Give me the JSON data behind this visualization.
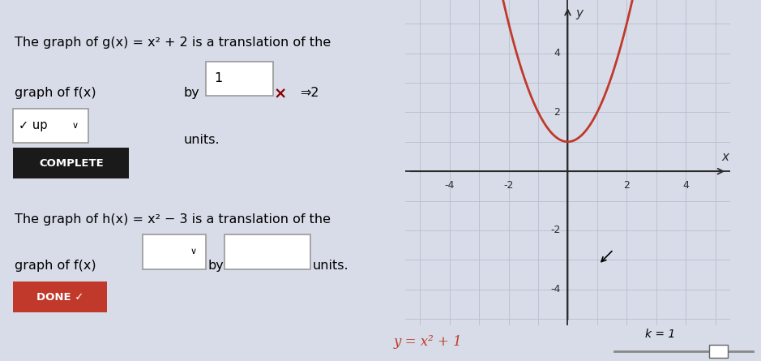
{
  "left_panel_bg": "#d8dce8",
  "graph_bg": "#eef0f5",
  "bottom_bar_bg": "#c5c9dc",
  "grid_color": "#b8bece",
  "axis_color": "#2a2a2a",
  "curve_color": "#c0392b",
  "curve_linewidth": 2.0,
  "x_range": [
    -5.5,
    5.5
  ],
  "y_range": [
    -5.2,
    5.8
  ],
  "x_ticks": [
    -4,
    -2,
    2,
    4
  ],
  "y_ticks": [
    -4,
    -2,
    2,
    4
  ],
  "equation": "y = x² + 1",
  "k_label": "k = 1",
  "title1a": "The graph of g(x) = x² + 2 is a translation of the",
  "title1b": "graph of f(x)",
  "by_text": "by",
  "input_value": "1",
  "x_mark": "×",
  "arrow_label": "⇒2",
  "up_text": "✓ up",
  "units_text": "units.",
  "complete_label": "COMPLETE",
  "title2a": "The graph of h(x) = x² − 3 is a translation of the",
  "title2b": "graph of f(x)",
  "by_text2": "by",
  "units_text2": "units.",
  "done_label": "DONE ✓",
  "font_size": 11.5,
  "split": 0.492
}
